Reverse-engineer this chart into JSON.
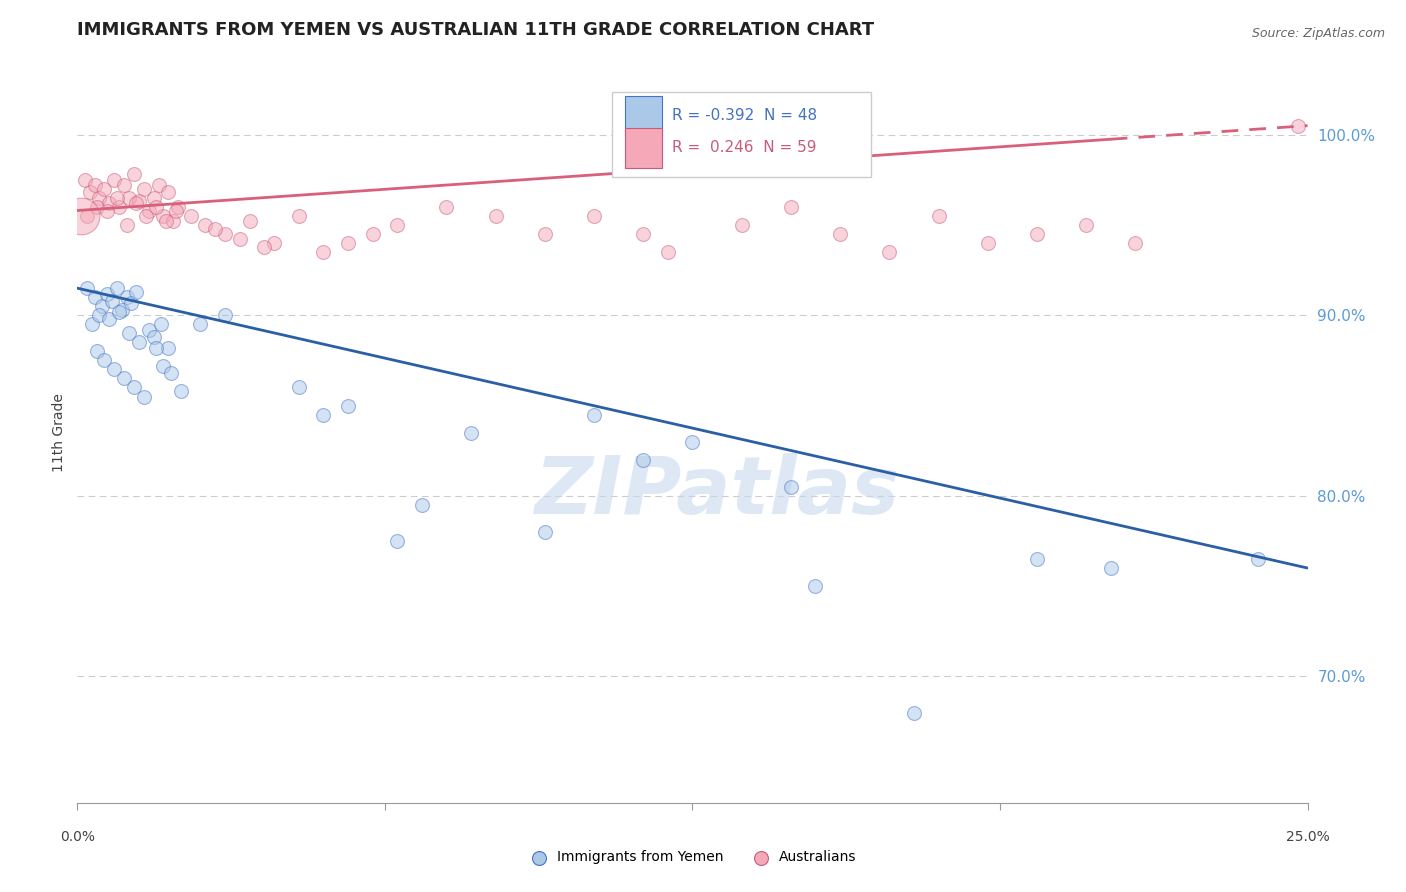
{
  "title": "IMMIGRANTS FROM YEMEN VS AUSTRALIAN 11TH GRADE CORRELATION CHART",
  "source": "Source: ZipAtlas.com",
  "ylabel": "11th Grade",
  "xlim": [
    0.0,
    25.0
  ],
  "ylim": [
    63.0,
    104.0
  ],
  "yticks": [
    70.0,
    80.0,
    90.0,
    100.0
  ],
  "ytick_labels": [
    "70.0%",
    "80.0%",
    "90.0%",
    "100.0%"
  ],
  "legend_blue_r": "R = -0.392",
  "legend_blue_n": "N = 48",
  "legend_pink_r": "R =  0.246",
  "legend_pink_n": "N = 59",
  "blue_fill": "#aac8e8",
  "blue_edge": "#4472c4",
  "pink_fill": "#f4a8b8",
  "pink_edge": "#c95b7a",
  "blue_line_color": "#2b5fa5",
  "pink_line_color": "#d9607a",
  "blue_scatter_x": [
    0.2,
    0.35,
    0.5,
    0.6,
    0.7,
    0.8,
    0.9,
    1.0,
    1.1,
    1.2,
    0.3,
    0.45,
    0.65,
    0.85,
    1.05,
    1.25,
    1.45,
    1.55,
    1.7,
    1.85,
    0.4,
    0.55,
    0.75,
    0.95,
    1.15,
    1.35,
    1.6,
    1.75,
    1.9,
    2.1,
    2.5,
    3.0,
    5.0,
    5.5,
    7.0,
    8.0,
    10.5,
    12.5,
    14.5,
    19.5,
    21.0,
    24.0,
    4.5,
    9.5,
    6.5,
    11.5,
    15.0,
    17.0
  ],
  "blue_scatter_y": [
    91.5,
    91.0,
    90.5,
    91.2,
    90.8,
    91.5,
    90.3,
    91.0,
    90.7,
    91.3,
    89.5,
    90.0,
    89.8,
    90.2,
    89.0,
    88.5,
    89.2,
    88.8,
    89.5,
    88.2,
    88.0,
    87.5,
    87.0,
    86.5,
    86.0,
    85.5,
    88.2,
    87.2,
    86.8,
    85.8,
    89.5,
    90.0,
    84.5,
    85.0,
    79.5,
    83.5,
    84.5,
    83.0,
    80.5,
    76.5,
    76.0,
    76.5,
    86.0,
    78.0,
    77.5,
    82.0,
    75.0,
    68.0
  ],
  "pink_scatter_x": [
    0.15,
    0.25,
    0.35,
    0.45,
    0.55,
    0.65,
    0.75,
    0.85,
    0.95,
    1.05,
    1.15,
    1.25,
    1.35,
    1.45,
    1.55,
    1.65,
    1.75,
    1.85,
    1.95,
    2.05,
    0.2,
    0.4,
    0.6,
    0.8,
    1.0,
    1.2,
    1.4,
    1.6,
    1.8,
    2.0,
    2.3,
    2.6,
    3.0,
    3.5,
    4.0,
    4.5,
    5.0,
    5.5,
    6.0,
    6.5,
    2.8,
    3.3,
    3.8,
    7.5,
    8.5,
    9.5,
    10.5,
    11.5,
    12.0,
    13.5,
    14.5,
    15.5,
    16.5,
    17.5,
    18.5,
    19.5,
    20.5,
    21.5,
    24.8
  ],
  "pink_scatter_y": [
    97.5,
    96.8,
    97.2,
    96.5,
    97.0,
    96.2,
    97.5,
    96.0,
    97.2,
    96.5,
    97.8,
    96.3,
    97.0,
    95.8,
    96.5,
    97.2,
    95.5,
    96.8,
    95.2,
    96.0,
    95.5,
    96.0,
    95.8,
    96.5,
    95.0,
    96.2,
    95.5,
    96.0,
    95.2,
    95.8,
    95.5,
    95.0,
    94.5,
    95.2,
    94.0,
    95.5,
    93.5,
    94.0,
    94.5,
    95.0,
    94.8,
    94.2,
    93.8,
    96.0,
    95.5,
    94.5,
    95.5,
    94.5,
    93.5,
    95.0,
    96.0,
    94.5,
    93.5,
    95.5,
    94.0,
    94.5,
    95.0,
    94.0,
    100.5
  ],
  "big_pink_dot_x": 0.07,
  "big_pink_dot_y": 95.5,
  "big_pink_dot_size": 700,
  "blue_trendline_x": [
    0.0,
    25.0
  ],
  "blue_trendline_y": [
    91.5,
    76.0
  ],
  "pink_trendline_x": [
    0.0,
    25.0
  ],
  "pink_trendline_y": [
    95.8,
    100.5
  ],
  "pink_trendline_solid_end": 21.0,
  "watermark": "ZIPatlas",
  "background_color": "#ffffff",
  "grid_color": "#cccccc",
  "dot_size": 100,
  "dot_alpha": 0.5,
  "dot_linewidth": 0.8
}
